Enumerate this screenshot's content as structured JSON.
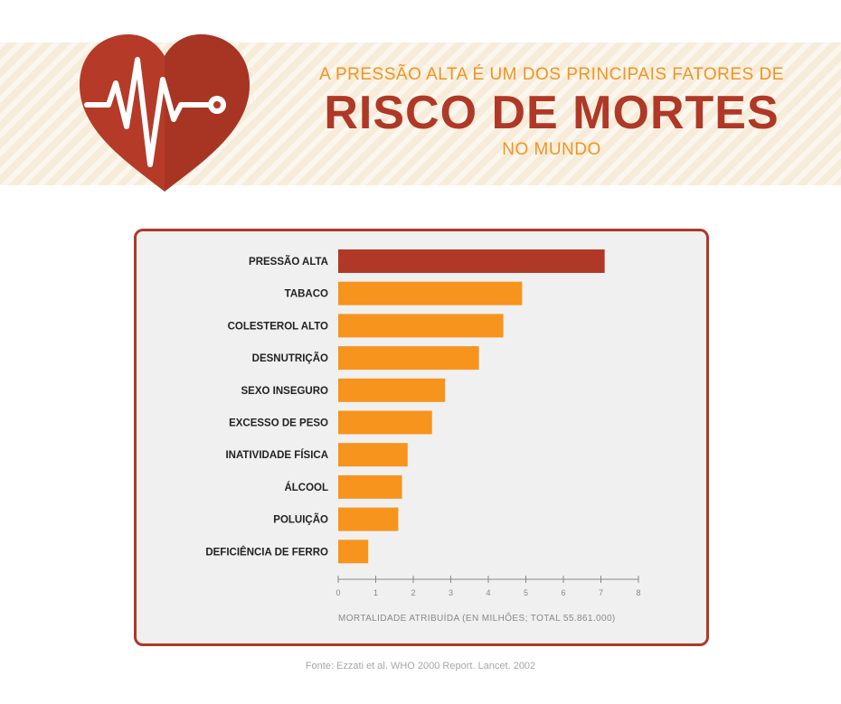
{
  "header": {
    "line1": "A PRESSÃO ALTA É UM DOS PRINCIPAIS FATORES DE",
    "line2": "RISCO DE MORTES",
    "line3": "NO MUNDO"
  },
  "colors": {
    "highlight": "#b03826",
    "bar": "#f7941d",
    "heart": "#b53a28",
    "accent_text": "#f3931f"
  },
  "chart_data": {
    "type": "bar",
    "orientation": "horizontal",
    "categories": [
      "PRESSÃO ALTA",
      "TABACO",
      "COLESTEROL ALTO",
      "DESNUTRIÇÃO",
      "SEXO INSEGURO",
      "EXCESSO DE PESO",
      "INATIVIDADE FÍSICA",
      "ÁLCOOL",
      "POLUIÇÃO",
      "DEFICIÊNCIA DE FERRO"
    ],
    "values": [
      7.1,
      4.9,
      4.4,
      3.75,
      2.85,
      2.5,
      1.85,
      1.7,
      1.6,
      0.8
    ],
    "highlight_index": 0,
    "xlim": [
      0,
      8
    ],
    "xticks": [
      "0",
      "1",
      "2",
      "3",
      "4",
      "5",
      "6",
      "7",
      "8"
    ],
    "xlabel": "MORTALIDADE ATRIBUÍDA (EN MILHÕES; TOTAL 55.861.000)",
    "grid": false
  },
  "source": "Fonte: Ezzati et al. WHO 2000 Report. Lancet. 2002"
}
